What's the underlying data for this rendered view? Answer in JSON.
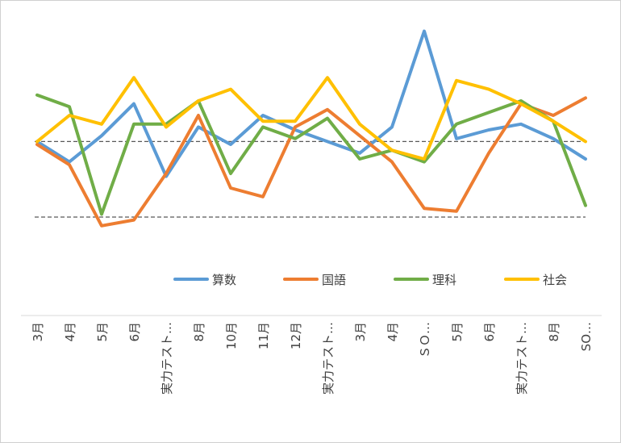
{
  "chart_data": {
    "type": "line",
    "title": "",
    "xlabel": "",
    "ylabel": "",
    "grid": "two dashed reference lines",
    "legend_position": "bottom-inside",
    "categories": [
      "3月",
      "4月",
      "5月",
      "6月",
      "実力テスト…",
      "8月",
      "10月",
      "11月",
      "12月",
      "実力テスト…",
      "3月",
      "4月",
      "ＳＯ…",
      "5月",
      "6月",
      "実力テスト…",
      "8月",
      "SO…"
    ],
    "ylim": [
      0,
      100
    ],
    "reference_lines": [
      56,
      30
    ],
    "series": [
      {
        "name": "算数",
        "color": "#5b9bd5",
        "values": [
          56,
          49,
          58,
          69,
          44,
          61,
          55,
          65,
          60,
          56,
          52,
          61,
          94,
          57,
          60,
          62,
          57,
          50
        ]
      },
      {
        "name": "国語",
        "color": "#ed7d31",
        "values": [
          55,
          48,
          27,
          29,
          45,
          65,
          40,
          37,
          61,
          67,
          58,
          49,
          33,
          32,
          52,
          69,
          65,
          71
        ]
      },
      {
        "name": "理科",
        "color": "#70ad47",
        "values": [
          72,
          68,
          31,
          62,
          62,
          70,
          45,
          61,
          57,
          64,
          50,
          53,
          49,
          62,
          66,
          70,
          63,
          34
        ]
      },
      {
        "name": "社会",
        "color": "#ffc000",
        "values": [
          56,
          65,
          62,
          78,
          61,
          70,
          74,
          63,
          63,
          78,
          62,
          53,
          50,
          77,
          74,
          69,
          63,
          56
        ]
      }
    ]
  }
}
